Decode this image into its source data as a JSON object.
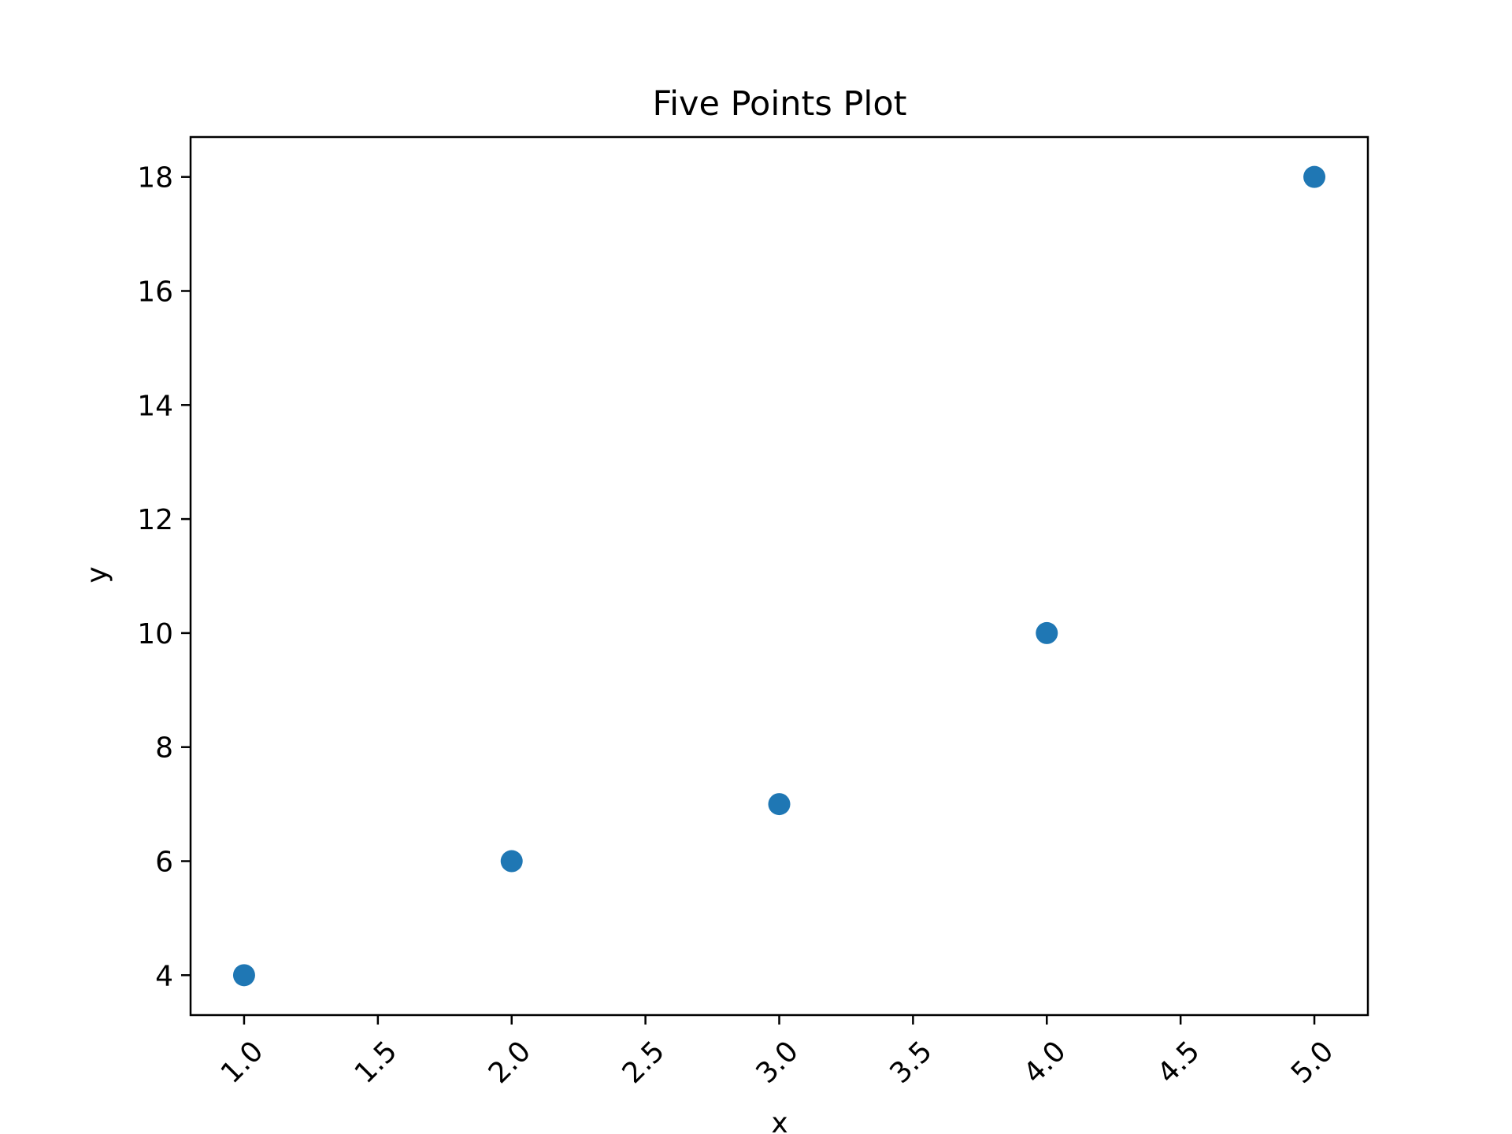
{
  "chart_data": {
    "type": "scatter",
    "title": "Five Points Plot",
    "xlabel": "x",
    "ylabel": "y",
    "xlim": [
      0.8,
      5.2
    ],
    "ylim": [
      3.3,
      18.7
    ],
    "x_ticks": [
      "1.0",
      "1.5",
      "2.0",
      "2.5",
      "3.0",
      "3.5",
      "4.0",
      "4.5",
      "5.0"
    ],
    "y_ticks": [
      "4",
      "6",
      "8",
      "10",
      "12",
      "14",
      "16",
      "18"
    ],
    "grid": false,
    "series": [
      {
        "x": [
          1.0,
          2.0,
          3.0,
          4.0,
          5.0
        ],
        "y": [
          4,
          6,
          7,
          10,
          18
        ],
        "color": "#1f77b4"
      }
    ]
  }
}
